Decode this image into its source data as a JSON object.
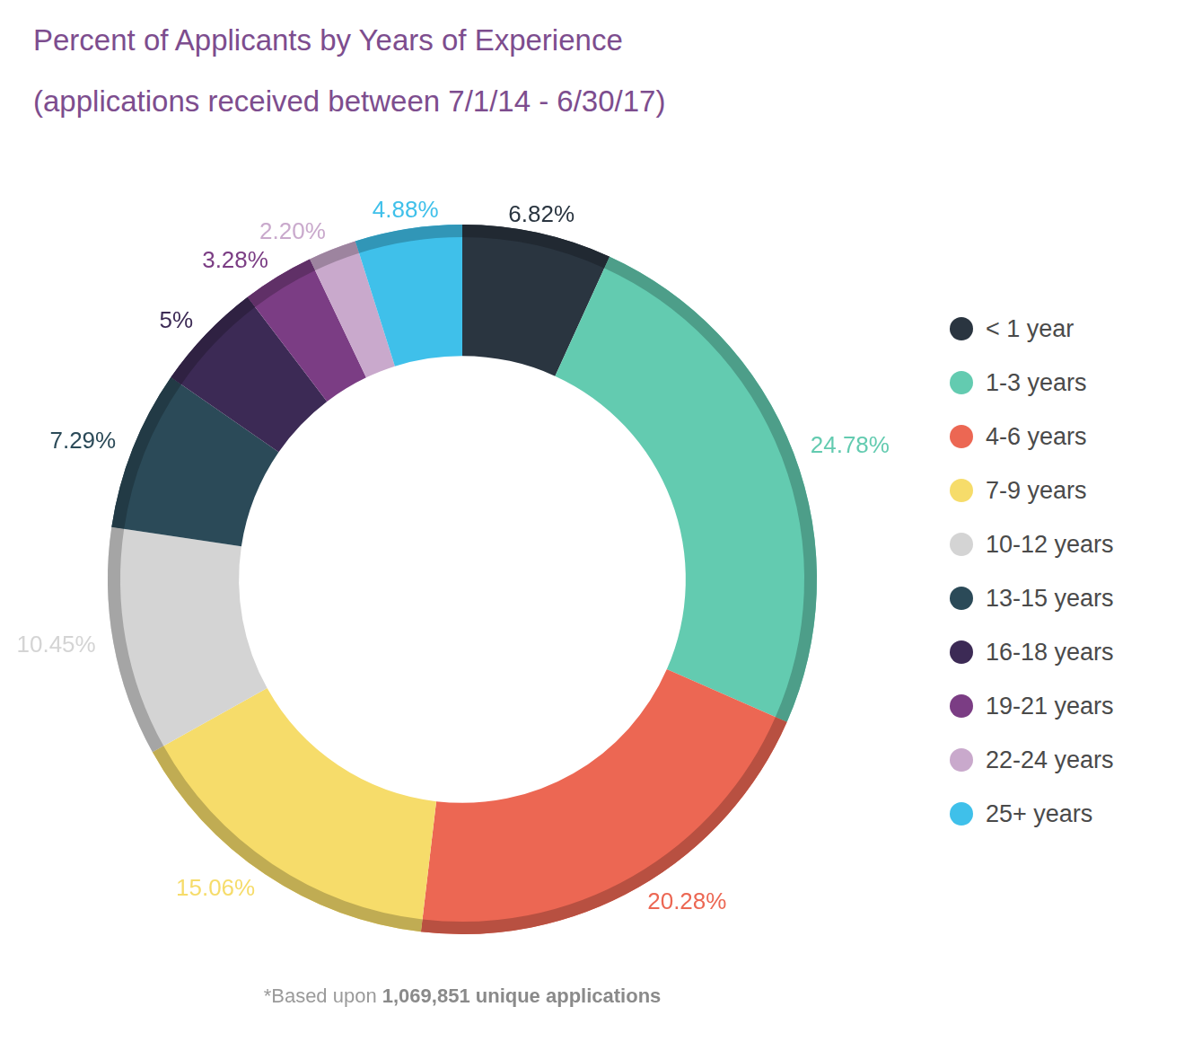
{
  "chart_data": {
    "type": "doughnut",
    "title": "Percent of Applicants by Years of Experience",
    "subtitle": "(applications received between 7/1/14 - 6/30/17)",
    "categories": [
      "< 1 year",
      "1-3 years",
      "4-6 years",
      "7-9 years",
      "10-12 years",
      "13-15 years",
      "16-18 years",
      "19-21 years",
      "22-24 years",
      "25+ years"
    ],
    "values": [
      6.82,
      24.78,
      20.28,
      15.06,
      10.45,
      7.29,
      5,
      3.28,
      2.2,
      4.88
    ],
    "value_labels": [
      "6.82%",
      "24.78%",
      "20.28%",
      "15.06%",
      "10.45%",
      "7.29%",
      "5%",
      "3.28%",
      "2.20%",
      "4.88%"
    ],
    "colors": [
      "#2a3540",
      "#63cbb0",
      "#ec6753",
      "#f6dc6a",
      "#d4d4d4",
      "#2b4a58",
      "#3c2a55",
      "#7b3d84",
      "#c9a9cc",
      "#3fc0ea"
    ],
    "legend": "right",
    "data_labels": true,
    "footnote": {
      "text": "*Based upon ",
      "bold": "1,069,851 unique applications"
    }
  }
}
